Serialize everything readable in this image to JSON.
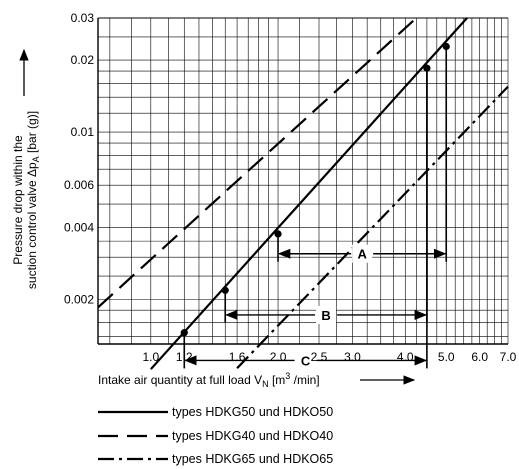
{
  "chart_data": {
    "type": "line",
    "x_scale": "log",
    "y_scale": "log",
    "xlim": [
      0.75,
      7.0
    ],
    "ylim": [
      0.0013,
      0.03
    ],
    "grid": true,
    "xlabel": {
      "text": "Intake air quantity at full load V",
      "subscript": "N",
      "unit": " [m",
      "unit_sup": "3",
      "unit_end": " /min]"
    },
    "ylabel": {
      "line1": "Pressure drop within the",
      "line2_start": "suction control valve Δp",
      "line2_sub": "A",
      "line2_end": " [bar (g)]"
    },
    "x_ticks": [
      {
        "value": 1.0,
        "label": "1.0"
      },
      {
        "value": 1.2,
        "label": "1.2"
      },
      {
        "value": 1.6,
        "label": "1.6"
      },
      {
        "value": 2.0,
        "label": "2.0"
      },
      {
        "value": 2.5,
        "label": "2.5"
      },
      {
        "value": 3.0,
        "label": "3.0"
      },
      {
        "value": 4.0,
        "label": "4.0"
      },
      {
        "value": 5.0,
        "label": "5.0"
      },
      {
        "value": 6.0,
        "label": "6.0"
      },
      {
        "value": 7.0,
        "label": "7.0"
      }
    ],
    "y_ticks": [
      {
        "value": 0.002,
        "label": "0.002"
      },
      {
        "value": 0.004,
        "label": "0.004"
      },
      {
        "value": 0.006,
        "label": "0.006"
      },
      {
        "value": 0.01,
        "label": "0.01"
      },
      {
        "value": 0.02,
        "label": "0.02"
      },
      {
        "value": 0.03,
        "label": "0.03"
      }
    ],
    "series": [
      {
        "name": "types HDKG50 und HDKO50",
        "style": "solid",
        "x": [
          1.0,
          5.6
        ],
        "y": [
          0.00102,
          0.03
        ]
      },
      {
        "name": "types HDKG40 und HDKO40",
        "style": "dash",
        "x": [
          0.75,
          4.25
        ],
        "y": [
          0.00185,
          0.03
        ]
      },
      {
        "name": "types HDKG65 und HDKO65",
        "style": "dashdot",
        "x": [
          1.6,
          7.0
        ],
        "y": [
          0.00103,
          0.0155
        ]
      }
    ],
    "markers": [
      {
        "x": 1.2,
        "y": 0.00145
      },
      {
        "x": 1.5,
        "y": 0.00218
      },
      {
        "x": 2.0,
        "y": 0.00375
      },
      {
        "x": 4.5,
        "y": 0.0185
      },
      {
        "x": 5.0,
        "y": 0.0228
      }
    ],
    "ranges": [
      {
        "label": "A",
        "x_from": 2.0,
        "x_to": 5.0,
        "y": 0.0031,
        "drop_from_y": 0.00375,
        "drop_to_y": 0.0228
      },
      {
        "label": "B",
        "x_from": 1.5,
        "x_to": 4.5,
        "y": 0.00172,
        "drop_from_y": 0.00218,
        "drop_to_y": 0.0185
      },
      {
        "label": "C",
        "x_from": 1.2,
        "x_to": 4.5,
        "y": 0.00111,
        "drop_from_y": 0.00145,
        "drop_to_y": 0.0185
      }
    ]
  }
}
